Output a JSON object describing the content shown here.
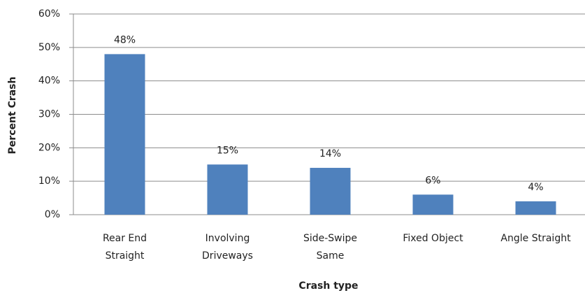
{
  "chart_data": {
    "type": "bar",
    "categories": [
      "Rear End\nStraight",
      "Involving\nDriveways",
      "Side-Swipe\nSame",
      "Fixed Object",
      "Angle Straight"
    ],
    "values": [
      48,
      15,
      14,
      6,
      4
    ],
    "value_labels": [
      "48%",
      "15%",
      "14%",
      "6%",
      "4%"
    ],
    "color": "#4f81bd",
    "x_label": "Crash type",
    "y_label": "Percent Crash",
    "ylim": [
      0,
      60
    ],
    "yticks": [
      {
        "value": 0,
        "label": "0%"
      },
      {
        "value": 10,
        "label": "10%"
      },
      {
        "value": 20,
        "label": "20%"
      },
      {
        "value": 30,
        "label": "30%"
      },
      {
        "value": 40,
        "label": "40%"
      },
      {
        "value": 50,
        "label": "50%"
      },
      {
        "value": 60,
        "label": "60%"
      }
    ],
    "grid": true
  }
}
